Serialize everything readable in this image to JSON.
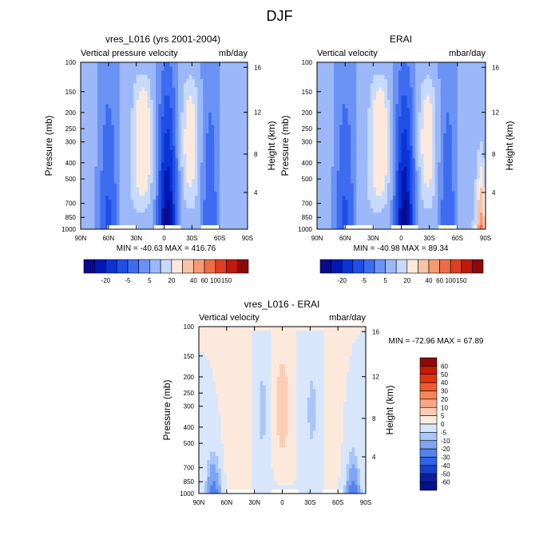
{
  "figure": {
    "title": "DJF"
  },
  "chart_data": [
    {
      "type": "heatmap",
      "title": "vres_L016 (yrs 2001-2004)",
      "left_subtitle": "Vertical pressure velocity",
      "right_subtitle": "mb/day",
      "ylabel": "Pressure (mb)",
      "ylabel_right": "Height (km)",
      "x_ticks": [
        "90N",
        "60N",
        "30N",
        "0",
        "30S",
        "60S",
        "90S"
      ],
      "y_ticks": [
        "100",
        "150",
        "200",
        "250",
        "300",
        "400",
        "500",
        "700",
        "850",
        "1000"
      ],
      "y_ticks_right": [
        "16",
        "12",
        "8",
        "4"
      ],
      "stats": "MIN = -40.63  MAX = 416.76",
      "colorbar_labels": [
        "-20",
        "-5",
        "5",
        "20",
        "40",
        "60",
        "100",
        "150"
      ]
    },
    {
      "type": "heatmap",
      "title": "ERAI",
      "left_subtitle": "Vertical velocity",
      "right_subtitle": "mbar/day",
      "ylabel": "Pressure (mb)",
      "ylabel_right": "Height (km)",
      "x_ticks": [
        "90N",
        "60N",
        "30N",
        "0",
        "30S",
        "60S",
        "90S"
      ],
      "y_ticks": [
        "100",
        "150",
        "200",
        "250",
        "300",
        "400",
        "500",
        "700",
        "850",
        "1000"
      ],
      "y_ticks_right": [
        "16",
        "12",
        "8",
        "4"
      ],
      "stats": "MIN = -40.98  MAX =  89.34",
      "colorbar_labels": [
        "-20",
        "-5",
        "5",
        "20",
        "40",
        "60",
        "100",
        "150"
      ]
    },
    {
      "type": "heatmap",
      "title": "vres_L016 - ERAI",
      "left_subtitle": "Vertical velocity",
      "right_subtitle": "mbar/day",
      "ylabel": "Pressure (mb)",
      "ylabel_right": "Height (km)",
      "x_ticks": [
        "90N",
        "60N",
        "30N",
        "0",
        "30S",
        "60S",
        "90S"
      ],
      "y_ticks": [
        "100",
        "150",
        "200",
        "250",
        "300",
        "400",
        "500",
        "700",
        "850",
        "1000"
      ],
      "y_ticks_right": [
        "16",
        "12",
        "8",
        "4"
      ],
      "stats": "MIN = -72.96  MAX =  67.89",
      "colorbar_labels": [
        "60",
        "50",
        "40",
        "30",
        "20",
        "10",
        "5",
        "0",
        "-5",
        "-10",
        "-20",
        "-30",
        "-40",
        "-50",
        "-60"
      ]
    }
  ],
  "colors": {
    "abs_scale": [
      "#0a0a8c",
      "#0018b4",
      "#0a34d6",
      "#1f4fe6",
      "#3d6cf0",
      "#6b92f5",
      "#9cb8f8",
      "#c8dafb",
      "#fde9dc",
      "#f9c3a6",
      "#f59a75",
      "#ee6d48",
      "#de3f22",
      "#bf1a0c",
      "#8c0a05"
    ],
    "diff_scale": [
      "#8c0a05",
      "#c01a08",
      "#e03512",
      "#f05a2e",
      "#f78456",
      "#f9a886",
      "#fccdb4",
      "#fde9dc",
      "#d7e6fb",
      "#a9c6f8",
      "#7ea4f3",
      "#5483ee",
      "#2f62e6",
      "#1540c9",
      "#0a1fa0",
      "#06108a"
    ]
  }
}
